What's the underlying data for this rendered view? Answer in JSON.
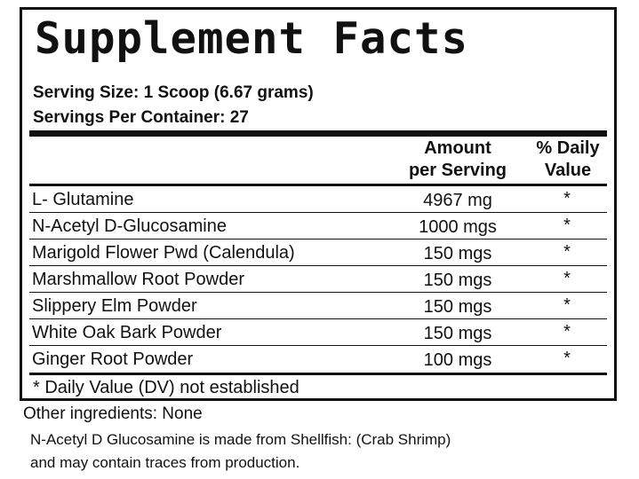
{
  "panel": {
    "title": "Supplement Facts",
    "serving_size": "Serving Size:  1 Scoop (6.67 grams)",
    "servings_per_container": "Servings Per Container:  27",
    "header": {
      "amount_line1": "Amount",
      "amount_line2": "per Serving",
      "dv_line1": "% Daily",
      "dv_line2": "Value"
    },
    "rows": [
      {
        "name": "L- Glutamine",
        "amount": "4967 mg",
        "dv": "*"
      },
      {
        "name": "N-Acetyl D-Glucosamine",
        "amount": "1000 mgs",
        "dv": "*"
      },
      {
        "name": "Marigold Flower Pwd (Calendula)",
        "amount": "150 mgs",
        "dv": "*"
      },
      {
        "name": "Marshmallow Root Powder",
        "amount": "150 mgs",
        "dv": "*"
      },
      {
        "name": "Slippery Elm Powder",
        "amount": "150 mgs",
        "dv": "*"
      },
      {
        "name": "White Oak Bark Powder",
        "amount": "150 mgs",
        "dv": "*"
      },
      {
        "name": "Ginger Root Powder",
        "amount": "100 mgs",
        "dv": "*"
      }
    ],
    "footnote": "* Daily Value (DV) not established"
  },
  "other_ingredients": "Other ingredients:  None",
  "allergen_line1": "N-Acetyl D Glucosamine is made from Shellfish: (Crab Shrimp)",
  "allergen_line2": "and may contain traces from production."
}
